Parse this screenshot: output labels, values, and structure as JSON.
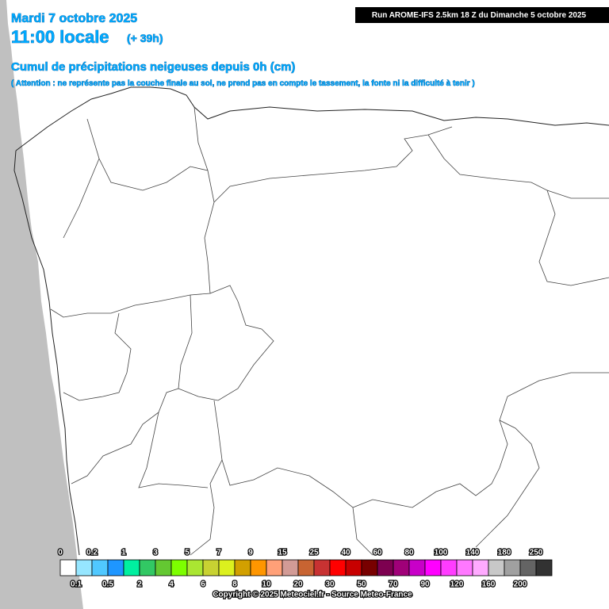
{
  "header": {
    "date": "Mardi 7 octobre 2025",
    "time": "11:00 locale",
    "lead": "(+ 39h)",
    "title": "Cumul de précipitations neigeuses depuis 0h (cm)",
    "note": "( Attention : ne représente pas la couche finale au sol, ne prend pas en compte le tassement, la fonte ni la difficulté à tenir )",
    "run": "Run AROME-IFS 2.5km 18 Z du Dimanche 5 octobre 2025"
  },
  "legend": {
    "labels": [
      0,
      0.1,
      0.2,
      0.5,
      1,
      2,
      3,
      4,
      5,
      6,
      7,
      8,
      9,
      10,
      15,
      20,
      25,
      30,
      40,
      50,
      60,
      70,
      80,
      90,
      100,
      120,
      140,
      160,
      180,
      200,
      250
    ],
    "colors": [
      "#ffffff",
      "#96e6ff",
      "#50c8ff",
      "#1e96ff",
      "#00f0a0",
      "#32c864",
      "#64c832",
      "#7dff00",
      "#aae632",
      "#c8d232",
      "#dcf01e",
      "#d2a000",
      "#ff9600",
      "#ffa078",
      "#d29b96",
      "#c86432",
      "#c83232",
      "#ff0000",
      "#c80000",
      "#780000",
      "#7d0050",
      "#a00078",
      "#c800c8",
      "#ff00ff",
      "#ff3cff",
      "#ff78ff",
      "#ffaaff",
      "#c8c8c8",
      "#a0a0a0",
      "#646464",
      "#323232"
    ]
  },
  "copyright": "Copyright © 2025 Meteociel.fr - Source Meteo-France"
}
